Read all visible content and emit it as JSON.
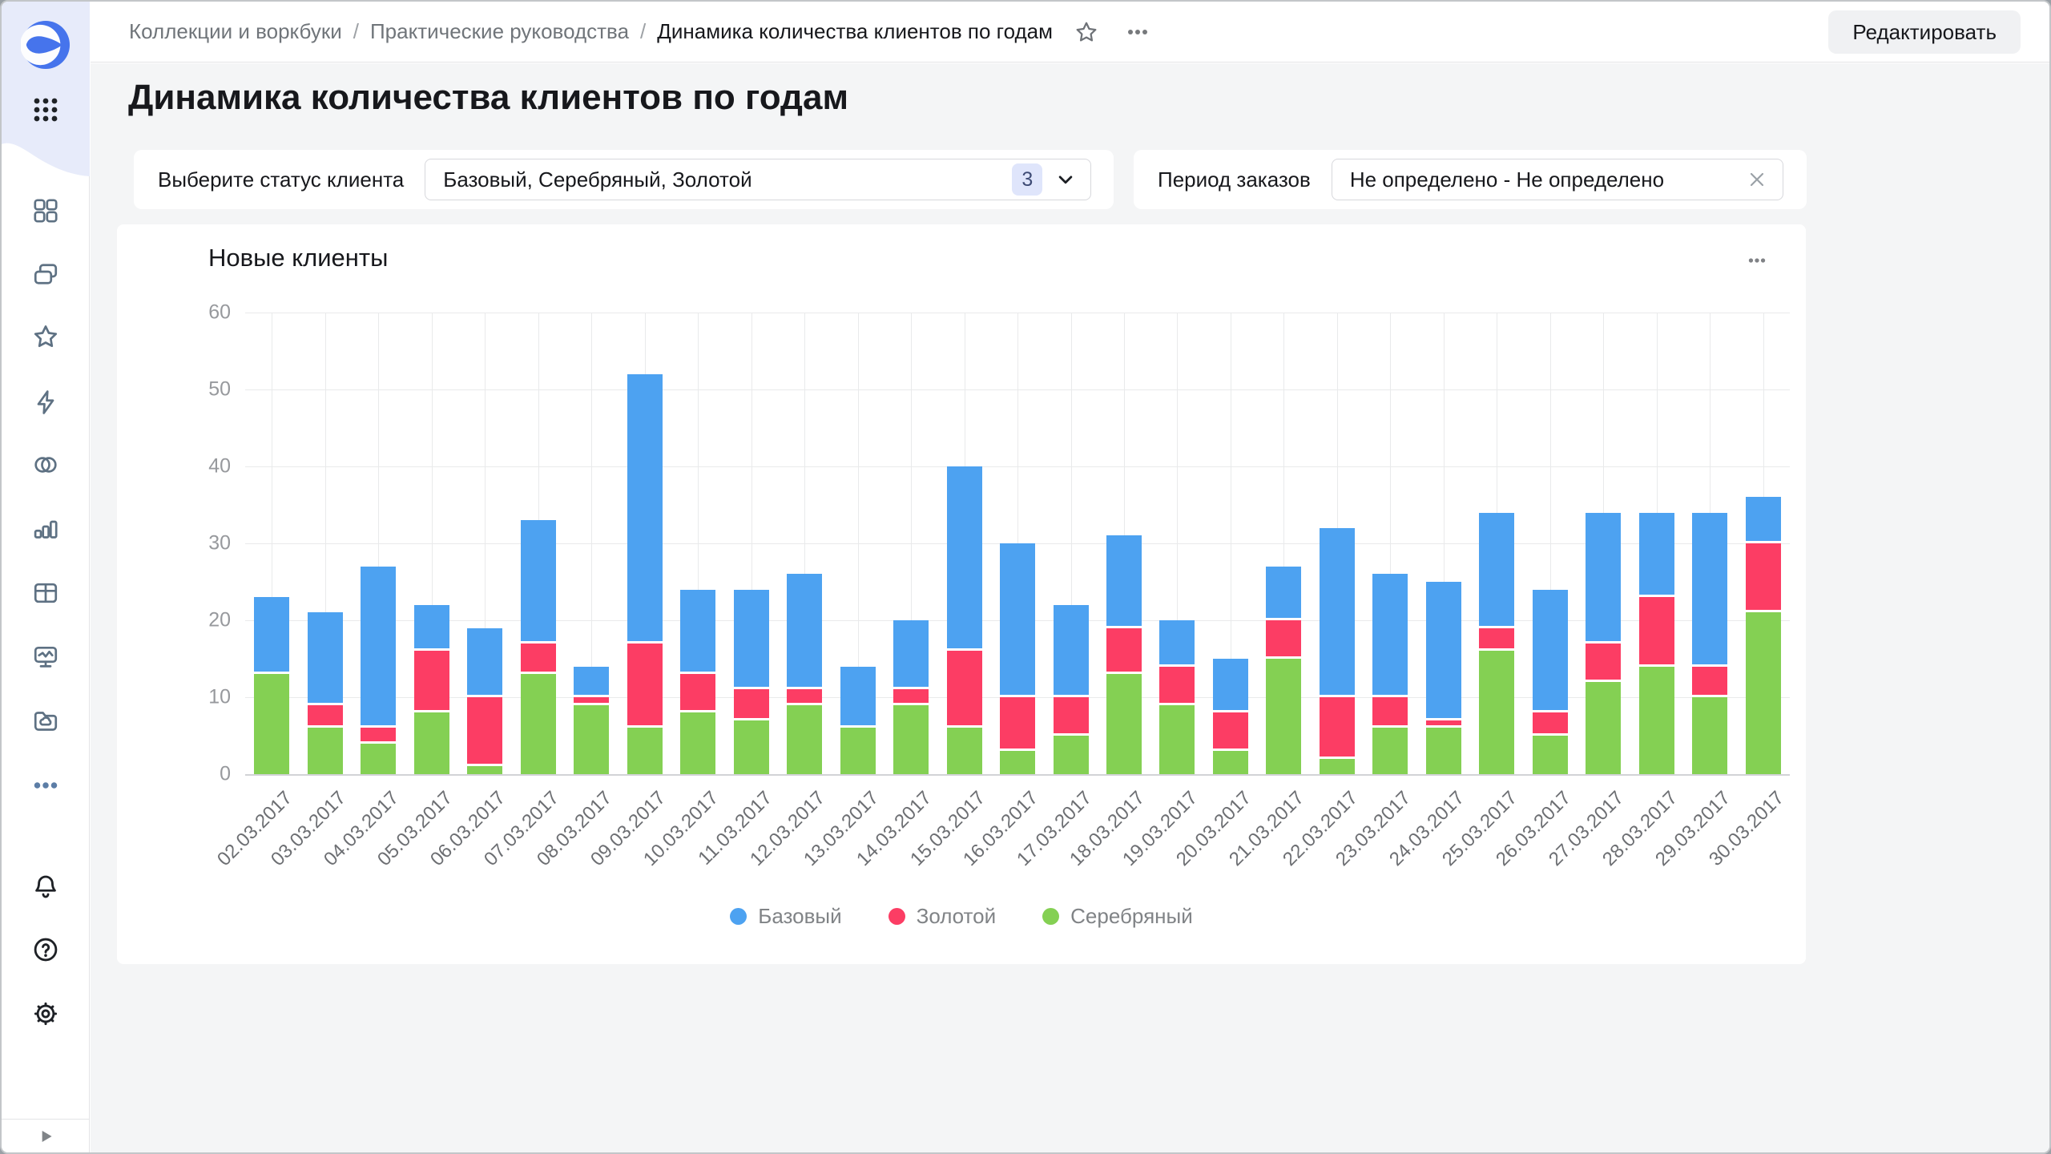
{
  "breadcrumbs": {
    "items": [
      "Коллекции и воркбуки",
      "Практические руководства",
      "Динамика количества клиентов по годам"
    ],
    "separator": "/"
  },
  "header": {
    "edit_button": "Редактировать"
  },
  "page": {
    "title": "Динамика количества клиентов по годам"
  },
  "filters": {
    "status": {
      "label": "Выберите статус клиента",
      "value": "Базовый, Серебряный, Золотой",
      "count": "3"
    },
    "period": {
      "label": "Период заказов",
      "value": "Не определено - Не определено"
    }
  },
  "widget": {
    "title": "Новые клиенты"
  },
  "sidebar": {
    "icons": [
      "datalens-logo",
      "apps-grid-icon",
      "dashboards-icon",
      "collections-icon",
      "favorites-icon",
      "quick-actions-icon",
      "connections-icon",
      "charts-icon",
      "datasets-icon",
      "monitoring-icon",
      "storage-icon",
      "more-icon",
      "notifications-icon",
      "help-icon",
      "settings-icon",
      "expand-icon"
    ]
  },
  "chart_data": {
    "type": "bar",
    "stacked": true,
    "title": "Новые клиенты",
    "categories": [
      "02.03.2017",
      "03.03.2017",
      "04.03.2017",
      "05.03.2017",
      "06.03.2017",
      "07.03.2017",
      "08.03.2017",
      "09.03.2017",
      "10.03.2017",
      "11.03.2017",
      "12.03.2017",
      "13.03.2017",
      "14.03.2017",
      "15.03.2017",
      "16.03.2017",
      "17.03.2017",
      "18.03.2017",
      "19.03.2017",
      "20.03.2017",
      "21.03.2017",
      "22.03.2017",
      "23.03.2017",
      "24.03.2017",
      "25.03.2017",
      "26.03.2017",
      "27.03.2017",
      "28.03.2017",
      "29.03.2017",
      "30.03.2017"
    ],
    "series": [
      {
        "name": "Серебряный",
        "color": "#84d053",
        "values": [
          13,
          6,
          4,
          8,
          1,
          13,
          9,
          6,
          8,
          7,
          9,
          6,
          9,
          6,
          3,
          5,
          13,
          9,
          3,
          15,
          2,
          6,
          6,
          16,
          5,
          12,
          14,
          10,
          21
        ]
      },
      {
        "name": "Золотой",
        "color": "#fc3d64",
        "values": [
          0,
          3,
          2,
          8,
          9,
          4,
          1,
          11,
          5,
          4,
          2,
          0,
          2,
          10,
          7,
          5,
          6,
          5,
          5,
          5,
          8,
          4,
          1,
          3,
          3,
          5,
          9,
          4,
          9
        ]
      },
      {
        "name": "Базовый",
        "color": "#4da2f1",
        "values": [
          10,
          12,
          21,
          6,
          9,
          16,
          4,
          35,
          11,
          13,
          15,
          8,
          9,
          24,
          20,
          12,
          12,
          6,
          7,
          7,
          22,
          16,
          18,
          15,
          16,
          17,
          11,
          20,
          6
        ]
      }
    ],
    "legend": [
      {
        "name": "Базовый",
        "color": "#4da2f1"
      },
      {
        "name": "Золотой",
        "color": "#fc3d64"
      },
      {
        "name": "Серебряный",
        "color": "#84d053"
      }
    ],
    "xlabel": "",
    "ylabel": "",
    "ylim": [
      0,
      60
    ],
    "yticks": [
      0,
      10,
      20,
      30,
      40,
      50,
      60
    ],
    "grid": true,
    "legend_position": "bottom"
  }
}
